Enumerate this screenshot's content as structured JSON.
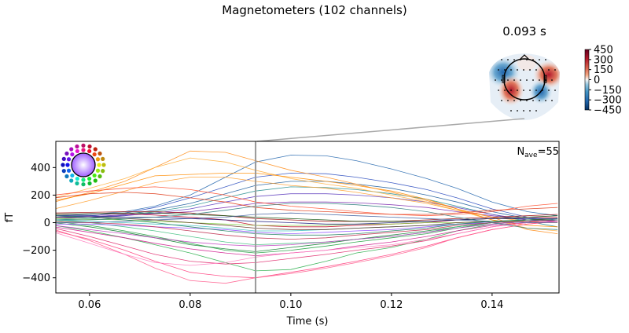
{
  "title": "Magnetometers (102 channels)",
  "topomap": {
    "time_label": "0.093 s",
    "colorbar": {
      "ticks": [
        "450",
        "300",
        "150",
        "0",
        "−150",
        "−300",
        "−450"
      ],
      "tick_values": [
        450,
        300,
        150,
        0,
        -150,
        -300,
        -450
      ],
      "range": [
        -450,
        450
      ],
      "colormap": "RdBu_r",
      "color_low": "#053061",
      "color_mid": "#f7f7f7",
      "color_high": "#67001f"
    }
  },
  "nave": {
    "label": "N",
    "sub": "ave",
    "value": "=55"
  },
  "legend_icon": "sensor-position-color-head",
  "chart_data": {
    "type": "line",
    "title": "Magnetometers (102 channels)",
    "xlabel": "Time (s)",
    "ylabel": "fT",
    "xlim": [
      0.0533,
      0.1533
    ],
    "ylim": [
      -510,
      590
    ],
    "xticks": [
      0.06,
      0.08,
      0.1,
      0.12,
      0.14
    ],
    "xtick_labels": [
      "0.06",
      "0.08",
      "0.10",
      "0.12",
      "0.14"
    ],
    "yticks": [
      -400,
      -200,
      0,
      200,
      400
    ],
    "ytick_labels": [
      "−400",
      "−200",
      "0",
      "200",
      "400"
    ],
    "grid": false,
    "marker_time": 0.093,
    "x": [
      0.053,
      0.06,
      0.067,
      0.073,
      0.08,
      0.087,
      0.093,
      0.1,
      0.107,
      0.113,
      0.12,
      0.127,
      0.133,
      0.14,
      0.147,
      0.153
    ],
    "series": [
      {
        "color": "#2b6cb0",
        "values": [
          50,
          60,
          80,
          120,
          200,
          330,
          440,
          490,
          485,
          450,
          390,
          320,
          250,
          150,
          80,
          50
        ]
      },
      {
        "color": "#3050c0",
        "values": [
          40,
          50,
          70,
          110,
          180,
          260,
          330,
          360,
          355,
          330,
          290,
          240,
          180,
          100,
          40,
          20
        ]
      },
      {
        "color": "#1f5f9f",
        "values": [
          30,
          40,
          60,
          90,
          140,
          210,
          270,
          300,
          300,
          280,
          250,
          200,
          150,
          80,
          30,
          10
        ]
      },
      {
        "color": "#2a9090",
        "values": [
          20,
          30,
          50,
          80,
          120,
          180,
          230,
          260,
          255,
          240,
          210,
          170,
          120,
          60,
          10,
          -30
        ]
      },
      {
        "color": "#6040c0",
        "values": [
          30,
          40,
          50,
          70,
          100,
          150,
          190,
          210,
          210,
          200,
          180,
          150,
          110,
          60,
          20,
          10
        ]
      },
      {
        "color": "#8030b0",
        "values": [
          40,
          45,
          55,
          65,
          80,
          110,
          140,
          150,
          150,
          145,
          130,
          110,
          80,
          50,
          20,
          10
        ]
      },
      {
        "color": "#ff9020",
        "values": [
          150,
          220,
          300,
          400,
          520,
          510,
          450,
          380,
          330,
          280,
          220,
          160,
          100,
          40,
          -50,
          -80
        ]
      },
      {
        "color": "#ffb040",
        "values": [
          180,
          250,
          320,
          400,
          470,
          440,
          380,
          320,
          280,
          250,
          200,
          150,
          90,
          20,
          -40,
          -60
        ]
      },
      {
        "color": "#ff8c00",
        "values": [
          160,
          210,
          280,
          340,
          350,
          360,
          360,
          330,
          300,
          270,
          230,
          170,
          100,
          20,
          -20,
          -30
        ]
      },
      {
        "color": "#ffa030",
        "values": [
          100,
          160,
          230,
          290,
          330,
          330,
          300,
          270,
          250,
          220,
          180,
          140,
          90,
          40,
          10,
          0
        ]
      },
      {
        "color": "#ff5030",
        "values": [
          200,
          230,
          250,
          260,
          240,
          200,
          150,
          120,
          100,
          80,
          60,
          50,
          60,
          80,
          120,
          140
        ]
      },
      {
        "color": "#e04020",
        "values": [
          180,
          210,
          220,
          210,
          180,
          150,
          110,
          90,
          80,
          70,
          60,
          60,
          70,
          90,
          100,
          110
        ]
      },
      {
        "color": "#a01010",
        "values": [
          70,
          75,
          80,
          80,
          70,
          50,
          30,
          20,
          10,
          10,
          10,
          20,
          30,
          40,
          50,
          60
        ]
      },
      {
        "color": "#c00020",
        "values": [
          60,
          65,
          65,
          55,
          40,
          20,
          -20,
          -30,
          -30,
          -20,
          -10,
          0,
          20,
          30,
          40,
          40
        ]
      },
      {
        "color": "#1a5a1a",
        "values": [
          60,
          65,
          70,
          70,
          60,
          50,
          40,
          30,
          20,
          10,
          10,
          10,
          20,
          30,
          40,
          50
        ]
      },
      {
        "color": "#20a040",
        "values": [
          10,
          -20,
          -60,
          -100,
          -150,
          -200,
          -220,
          -200,
          -170,
          -140,
          -110,
          -80,
          -40,
          0,
          20,
          30
        ]
      },
      {
        "color": "#30b050",
        "values": [
          -20,
          -60,
          -110,
          -160,
          -220,
          -290,
          -350,
          -340,
          -280,
          -220,
          -180,
          -120,
          -60,
          -10,
          10,
          20
        ]
      },
      {
        "color": "#108030",
        "values": [
          0,
          -30,
          -70,
          -110,
          -160,
          -190,
          -210,
          -180,
          -150,
          -120,
          -90,
          -60,
          -30,
          0,
          10,
          20
        ]
      },
      {
        "color": "#40c080",
        "values": [
          20,
          0,
          -30,
          -60,
          -100,
          -140,
          -160,
          -150,
          -140,
          -120,
          -100,
          -70,
          -30,
          0,
          20,
          30
        ]
      },
      {
        "color": "#ff4080",
        "values": [
          -60,
          -120,
          -200,
          -280,
          -360,
          -390,
          -400,
          -360,
          -320,
          -280,
          -230,
          -170,
          -110,
          -50,
          -10,
          10
        ]
      },
      {
        "color": "#ff6090",
        "values": [
          -50,
          -130,
          -230,
          -330,
          -420,
          -440,
          -400,
          -370,
          -330,
          -290,
          -240,
          -180,
          -110,
          -50,
          -10,
          10
        ]
      },
      {
        "color": "#e03070",
        "values": [
          -40,
          -100,
          -170,
          -230,
          -280,
          -300,
          -290,
          -260,
          -230,
          -200,
          -170,
          -130,
          -80,
          -30,
          0,
          10
        ]
      },
      {
        "color": "#d02090",
        "values": [
          -30,
          -70,
          -110,
          -150,
          -190,
          -220,
          -240,
          -220,
          -200,
          -170,
          -140,
          -100,
          -60,
          -20,
          0,
          10
        ]
      },
      {
        "color": "#c040c0",
        "values": [
          -20,
          -50,
          -80,
          -110,
          -140,
          -160,
          -170,
          -160,
          -140,
          -120,
          -100,
          -70,
          -40,
          -10,
          10,
          20
        ]
      },
      {
        "color": "#ff80c0",
        "values": [
          -70,
          -150,
          -230,
          -290,
          -310,
          -290,
          -250,
          -220,
          -200,
          -180,
          -160,
          -120,
          -80,
          -30,
          0,
          10
        ]
      },
      {
        "color": "#4060a0",
        "values": [
          0,
          0,
          10,
          20,
          30,
          40,
          60,
          70,
          60,
          50,
          40,
          30,
          20,
          10,
          0,
          0
        ]
      },
      {
        "color": "#40c0c0",
        "values": [
          20,
          10,
          0,
          -10,
          -20,
          -40,
          -60,
          -60,
          -50,
          -40,
          -30,
          -20,
          -10,
          0,
          10,
          20
        ]
      },
      {
        "color": "#80d040",
        "values": [
          30,
          25,
          20,
          10,
          0,
          -10,
          -20,
          -20,
          -20,
          -10,
          -10,
          0,
          0,
          10,
          10,
          20
        ]
      },
      {
        "color": "#9050ff",
        "values": [
          -10,
          -10,
          -20,
          -30,
          -40,
          -50,
          -70,
          -80,
          -70,
          -60,
          -50,
          -30,
          -10,
          0,
          10,
          20
        ]
      },
      {
        "color": "#603020",
        "values": [
          40,
          40,
          30,
          20,
          0,
          -20,
          -40,
          -50,
          -50,
          -40,
          -30,
          -20,
          0,
          10,
          20,
          30
        ]
      },
      {
        "color": "#202080",
        "values": [
          50,
          50,
          40,
          40,
          30,
          20,
          10,
          0,
          -10,
          -10,
          0,
          10,
          20,
          30,
          30,
          30
        ]
      },
      {
        "color": "#c03050",
        "values": [
          10,
          0,
          -10,
          -30,
          -60,
          -90,
          -110,
          -120,
          -110,
          -90,
          -70,
          -50,
          -20,
          0,
          10,
          20
        ]
      },
      {
        "color": "#208060",
        "values": [
          50,
          40,
          20,
          0,
          -30,
          -60,
          -80,
          -90,
          -90,
          -80,
          -60,
          -40,
          -10,
          10,
          20,
          20
        ]
      },
      {
        "color": "#308080",
        "values": [
          20,
          20,
          30,
          40,
          60,
          90,
          120,
          140,
          140,
          130,
          110,
          80,
          40,
          0,
          -40,
          -50
        ]
      }
    ]
  }
}
